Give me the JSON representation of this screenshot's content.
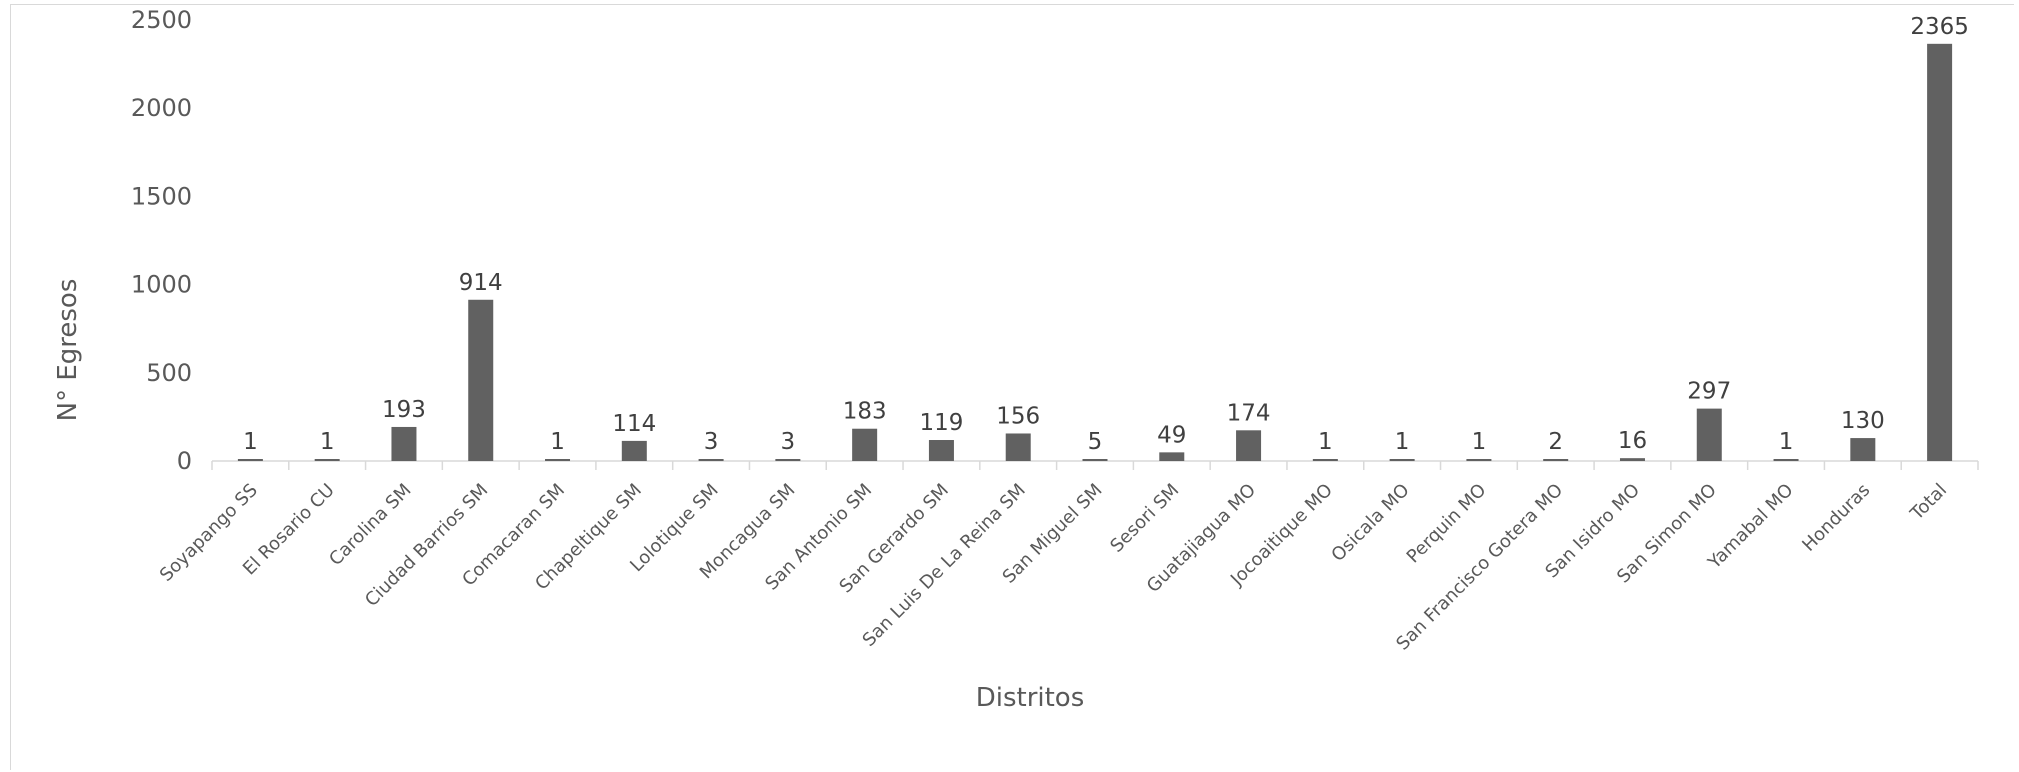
{
  "chart_data": {
    "type": "bar",
    "title": "",
    "xlabel": "Distritos",
    "ylabel": "N° Egresos",
    "ylim": [
      0,
      2500
    ],
    "yticks": [
      0,
      500,
      1000,
      1500,
      2000,
      2500
    ],
    "grid": false,
    "legend": "none",
    "bar_color": "#616161",
    "categories": [
      "Soyapango SS",
      "El Rosario CU",
      "Carolina SM",
      "Ciudad Barrios SM",
      "Comacaran SM",
      "Chapeltique SM",
      "Lolotique SM",
      "Moncagua SM",
      "San Antonio SM",
      "San Gerardo SM",
      "San Luis De La Reina SM",
      "San Miguel SM",
      "Sesori SM",
      "Guatajiagua MO",
      "Jocoaitique MO",
      "Osicala MO",
      "Perquin MO",
      "San Francisco Gotera MO",
      "San Isidro MO",
      "San Simon MO",
      "Yamabal MO",
      "Honduras",
      "Total"
    ],
    "values": [
      1,
      1,
      193,
      914,
      1,
      114,
      3,
      3,
      183,
      119,
      156,
      5,
      49,
      174,
      1,
      1,
      1,
      2,
      16,
      297,
      1,
      130,
      2365
    ]
  }
}
